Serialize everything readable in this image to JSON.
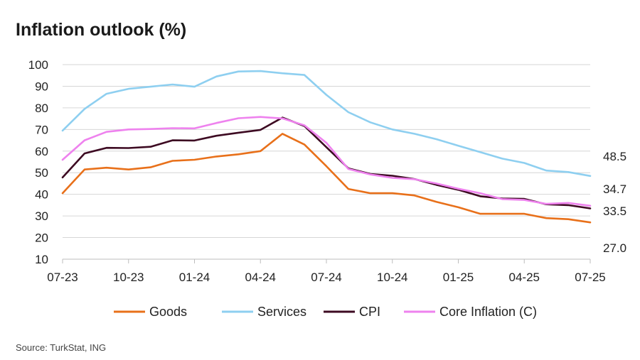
{
  "title": "Inflation outlook (%)",
  "source": "Source: TurkStat, ING",
  "chart_data": {
    "type": "line",
    "title": "Inflation outlook (%)",
    "xlabel": "",
    "ylabel": "",
    "ylim": [
      10,
      100
    ],
    "yticks": [
      "10",
      "20",
      "30",
      "40",
      "50",
      "60",
      "70",
      "80",
      "90",
      "100"
    ],
    "xtick_labels": [
      "07-23",
      "10-23",
      "01-24",
      "04-24",
      "07-24",
      "10-24",
      "01-25",
      "04-25",
      "07-25"
    ],
    "x": [
      "07-23",
      "08-23",
      "09-23",
      "10-23",
      "11-23",
      "12-23",
      "01-24",
      "02-24",
      "03-24",
      "04-24",
      "05-24",
      "06-24",
      "07-24",
      "08-24",
      "09-24",
      "10-24",
      "11-24",
      "12-24",
      "01-25",
      "02-25",
      "03-25",
      "04-25",
      "05-25",
      "06-25",
      "07-25"
    ],
    "grid": true,
    "legend_position": "bottom",
    "end_labels": [
      "48.5",
      "34.7",
      "33.5",
      "27.0"
    ],
    "series": [
      {
        "name": "Goods",
        "color": "#E8701A",
        "values": [
          40.5,
          51.5,
          52.3,
          51.5,
          52.5,
          55.5,
          56.0,
          57.5,
          58.5,
          60.0,
          68.0,
          63.0,
          53.0,
          42.5,
          40.5,
          40.5,
          39.5,
          36.5,
          34.0,
          31.0,
          31.0,
          31.0,
          29.0,
          28.5,
          27.0
        ]
      },
      {
        "name": "Services",
        "color": "#8ECFF0",
        "values": [
          69.5,
          79.5,
          86.5,
          88.8,
          89.8,
          90.8,
          89.8,
          94.5,
          96.8,
          97.0,
          96.0,
          95.2,
          86.0,
          78.0,
          73.3,
          70.0,
          68.0,
          65.5,
          62.5,
          59.5,
          56.5,
          54.5,
          51.0,
          50.3,
          48.5
        ]
      },
      {
        "name": "CPI",
        "color": "#3D0A22",
        "values": [
          47.8,
          58.9,
          61.5,
          61.4,
          62.0,
          65.0,
          64.9,
          67.1,
          68.5,
          69.8,
          75.5,
          71.6,
          61.8,
          52.0,
          49.4,
          48.6,
          47.1,
          44.4,
          42.1,
          39.1,
          38.1,
          37.9,
          35.4,
          35.0,
          33.5
        ]
      },
      {
        "name": "Core Inflation (C)",
        "color": "#EE82EE",
        "values": [
          56.0,
          65.0,
          68.9,
          70.0,
          70.2,
          70.6,
          70.5,
          73.0,
          75.2,
          75.8,
          75.1,
          71.9,
          63.8,
          51.7,
          49.2,
          47.6,
          47.0,
          45.0,
          42.6,
          40.5,
          37.8,
          37.4,
          35.6,
          36.0,
          34.7
        ]
      }
    ]
  }
}
